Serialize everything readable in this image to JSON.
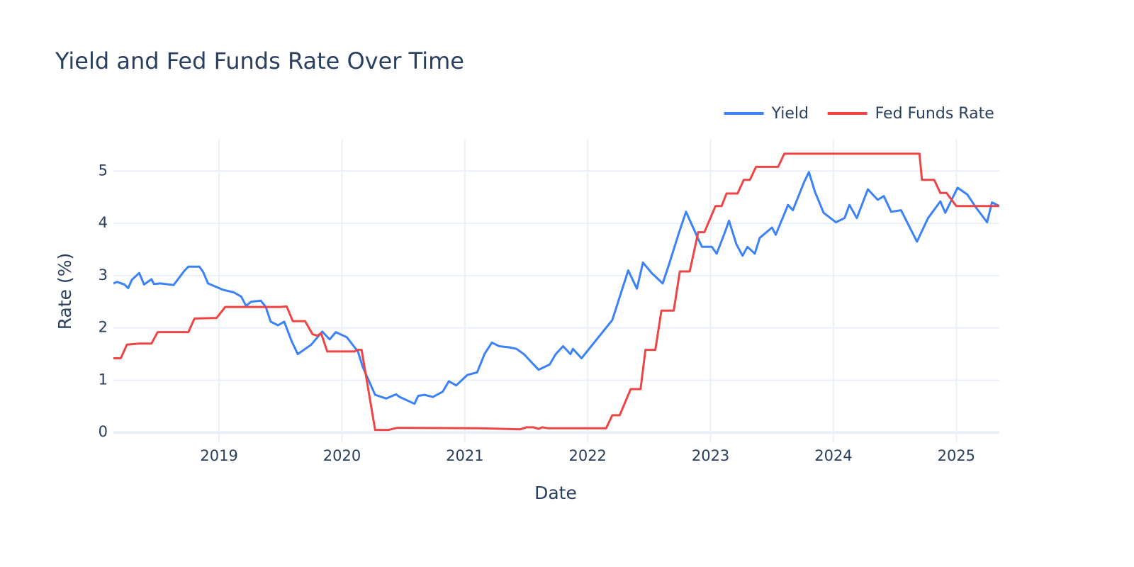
{
  "chart_data": {
    "type": "line",
    "title": "Yield and Fed Funds Rate Over Time",
    "x_label": "Date",
    "y_label": "Rate (%)",
    "xlim": [
      2018.14,
      2025.35
    ],
    "xticks": [
      2019,
      2020,
      2021,
      2022,
      2023,
      2024,
      2025
    ],
    "ylim": [
      -0.2,
      5.6
    ],
    "yticks": [
      0,
      1,
      2,
      3,
      4,
      5
    ],
    "grid": true,
    "legend": "top-right",
    "series": [
      {
        "name": "Yield",
        "color": "#3b82f6",
        "x": [
          2018.14,
          2018.17,
          2018.23,
          2018.26,
          2018.29,
          2018.35,
          2018.39,
          2018.45,
          2018.47,
          2018.52,
          2018.63,
          2018.72,
          2018.75,
          2018.84,
          2018.87,
          2018.91,
          2019.03,
          2019.12,
          2019.18,
          2019.22,
          2019.26,
          2019.34,
          2019.38,
          2019.42,
          2019.48,
          2019.53,
          2019.59,
          2019.64,
          2019.75,
          2019.84,
          2019.9,
          2019.95,
          2020.04,
          2020.13,
          2020.17,
          2020.27,
          2020.36,
          2020.44,
          2020.47,
          2020.59,
          2020.62,
          2020.67,
          2020.74,
          2020.82,
          2020.87,
          2020.93,
          2021.02,
          2021.1,
          2021.16,
          2021.22,
          2021.28,
          2021.36,
          2021.42,
          2021.48,
          2021.6,
          2021.69,
          2021.74,
          2021.8,
          2021.86,
          2021.88,
          2021.95,
          2022.2,
          2022.33,
          2022.4,
          2022.45,
          2022.52,
          2022.61,
          2022.66,
          2022.74,
          2022.8,
          2022.9,
          2022.93,
          2023.01,
          2023.05,
          2023.12,
          2023.15,
          2023.21,
          2023.26,
          2023.3,
          2023.36,
          2023.4,
          2023.5,
          2023.53,
          2023.63,
          2023.67,
          2023.76,
          2023.8,
          2023.85,
          2023.92,
          2024.02,
          2024.09,
          2024.13,
          2024.19,
          2024.28,
          2024.36,
          2024.41,
          2024.47,
          2024.55,
          2024.68,
          2024.77,
          2024.87,
          2024.91,
          2025.01,
          2025.09,
          2025.16,
          2025.25,
          2025.29,
          2025.35
        ],
        "values": [
          2.85,
          2.88,
          2.83,
          2.76,
          2.92,
          3.05,
          2.83,
          2.93,
          2.84,
          2.85,
          2.82,
          3.1,
          3.17,
          3.17,
          3.07,
          2.85,
          2.73,
          2.68,
          2.6,
          2.42,
          2.5,
          2.52,
          2.4,
          2.12,
          2.05,
          2.12,
          1.75,
          1.5,
          1.68,
          1.93,
          1.78,
          1.92,
          1.82,
          1.55,
          1.25,
          0.72,
          0.65,
          0.73,
          0.68,
          0.55,
          0.7,
          0.72,
          0.68,
          0.78,
          0.98,
          0.9,
          1.1,
          1.15,
          1.5,
          1.72,
          1.65,
          1.63,
          1.6,
          1.5,
          1.2,
          1.3,
          1.5,
          1.65,
          1.5,
          1.6,
          1.42,
          2.15,
          3.1,
          2.75,
          3.25,
          3.05,
          2.85,
          3.2,
          3.8,
          4.22,
          3.7,
          3.55,
          3.55,
          3.42,
          3.85,
          4.05,
          3.6,
          3.38,
          3.55,
          3.42,
          3.72,
          3.92,
          3.78,
          4.35,
          4.25,
          4.78,
          4.98,
          4.6,
          4.2,
          4.02,
          4.1,
          4.35,
          4.1,
          4.65,
          4.45,
          4.52,
          4.22,
          4.25,
          3.65,
          4.1,
          4.42,
          4.2,
          4.68,
          4.55,
          4.3,
          4.02,
          4.4,
          4.33
        ]
      },
      {
        "name": "Fed Funds Rate",
        "color": "#ef4444",
        "x": [
          2018.14,
          2018.2,
          2018.25,
          2018.35,
          2018.45,
          2018.5,
          2018.75,
          2018.8,
          2018.98,
          2019.05,
          2019.5,
          2019.55,
          2019.6,
          2019.7,
          2019.76,
          2019.8,
          2019.83,
          2019.88,
          2020.1,
          2020.13,
          2020.16,
          2020.27,
          2020.38,
          2020.45,
          2021.12,
          2021.45,
          2021.5,
          2021.56,
          2021.6,
          2021.63,
          2021.68,
          2022.15,
          2022.2,
          2022.26,
          2022.35,
          2022.43,
          2022.47,
          2022.55,
          2022.6,
          2022.7,
          2022.75,
          2022.83,
          2022.9,
          2022.95,
          2023.04,
          2023.09,
          2023.13,
          2023.22,
          2023.27,
          2023.32,
          2023.37,
          2023.55,
          2023.6,
          2024.7,
          2024.72,
          2024.82,
          2024.87,
          2024.92,
          2025.0,
          2025.35
        ],
        "values": [
          1.42,
          1.42,
          1.68,
          1.7,
          1.7,
          1.92,
          1.92,
          2.18,
          2.19,
          2.4,
          2.4,
          2.41,
          2.13,
          2.13,
          1.88,
          1.85,
          1.9,
          1.55,
          1.55,
          1.58,
          1.58,
          0.05,
          0.05,
          0.09,
          0.08,
          0.06,
          0.1,
          0.1,
          0.07,
          0.1,
          0.08,
          0.08,
          0.33,
          0.33,
          0.83,
          0.83,
          1.58,
          1.58,
          2.33,
          2.33,
          3.08,
          3.08,
          3.83,
          3.83,
          4.33,
          4.33,
          4.57,
          4.57,
          4.83,
          4.83,
          5.08,
          5.08,
          5.33,
          5.33,
          4.83,
          4.83,
          4.58,
          4.58,
          4.33,
          4.33
        ]
      }
    ]
  }
}
